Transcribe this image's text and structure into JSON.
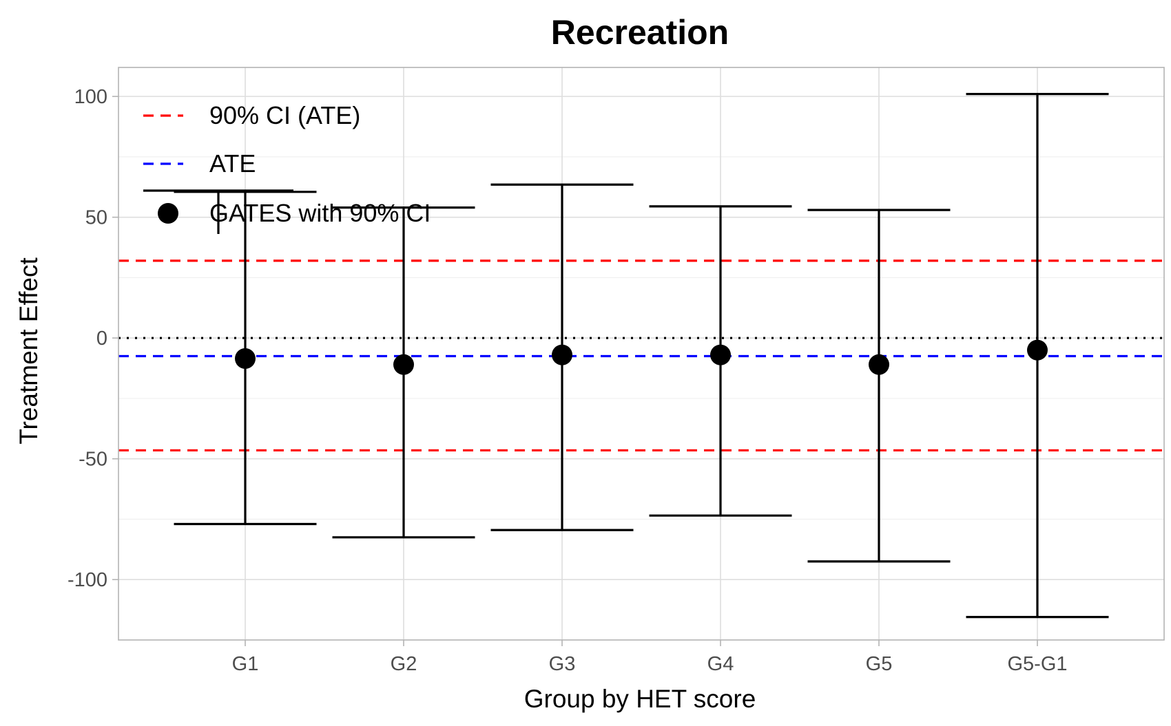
{
  "chart_data": {
    "type": "scatter",
    "title": "Recreation",
    "xlabel": "Group by HET score",
    "ylabel": "Treatment Effect",
    "categories": [
      "G1",
      "G2",
      "G3",
      "G4",
      "G5",
      "G5-G1"
    ],
    "ylim": [
      -125,
      112
    ],
    "y_ticks": [
      100,
      50,
      0,
      -50,
      -100
    ],
    "y_tick_labels": [
      "100",
      "50",
      "0",
      "-50",
      "-100"
    ],
    "grid": true,
    "series": [
      {
        "name": "GATES with 90% CI",
        "values": [
          -8.5,
          -11,
          -7,
          -7,
          -11,
          -5
        ],
        "ci_lower": [
          -77,
          -82.5,
          -79.5,
          -73.5,
          -92.5,
          -115.5
        ],
        "ci_upper": [
          60.5,
          54,
          63.5,
          54.5,
          53,
          101
        ],
        "color": "#000000"
      }
    ],
    "reference_lines": [
      {
        "name": "90% CI (ATE)",
        "y": 32,
        "color": "#ff0000",
        "style": "dashed"
      },
      {
        "name": "90% CI (ATE)",
        "y": -46.5,
        "color": "#ff0000",
        "style": "dashed"
      },
      {
        "name": "ATE",
        "y": -7.5,
        "color": "#0000ff",
        "style": "dashed"
      },
      {
        "name": "",
        "y": 0,
        "color": "#000000",
        "style": "dotted"
      }
    ],
    "legend": {
      "position": "top-left",
      "entries": [
        {
          "label": "90% CI (ATE)",
          "kind": "dashed-line",
          "color": "#ff0000"
        },
        {
          "label": "ATE",
          "kind": "dashed-line",
          "color": "#0000ff"
        },
        {
          "label": "GATES with 90% CI",
          "kind": "point-errorbar",
          "color": "#000000"
        }
      ]
    }
  }
}
